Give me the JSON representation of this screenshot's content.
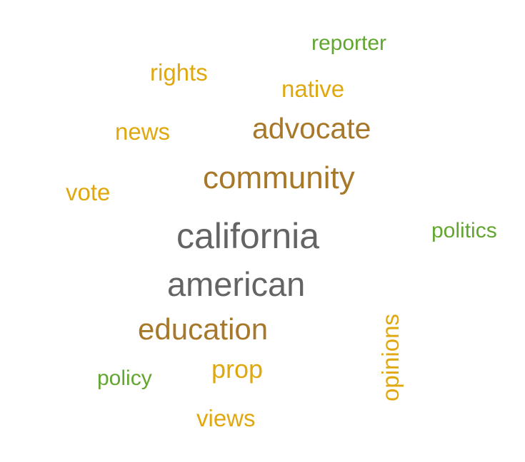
{
  "word_cloud": {
    "words": [
      {
        "text": "reporter",
        "color": "#62a630"
      },
      {
        "text": "rights",
        "color": "#e0a80e"
      },
      {
        "text": "native",
        "color": "#e0a80e"
      },
      {
        "text": "news",
        "color": "#e0a80e"
      },
      {
        "text": "advocate",
        "color": "#a8782a"
      },
      {
        "text": "community",
        "color": "#a8782a"
      },
      {
        "text": "vote",
        "color": "#e0a80e"
      },
      {
        "text": "california",
        "color": "#646464"
      },
      {
        "text": "politics",
        "color": "#62a630"
      },
      {
        "text": "american",
        "color": "#646464"
      },
      {
        "text": "education",
        "color": "#a8782a"
      },
      {
        "text": "opinions",
        "color": "#e0a80e"
      },
      {
        "text": "policy",
        "color": "#62a630"
      },
      {
        "text": "prop",
        "color": "#e0a80e"
      },
      {
        "text": "views",
        "color": "#e0a80e"
      }
    ]
  }
}
